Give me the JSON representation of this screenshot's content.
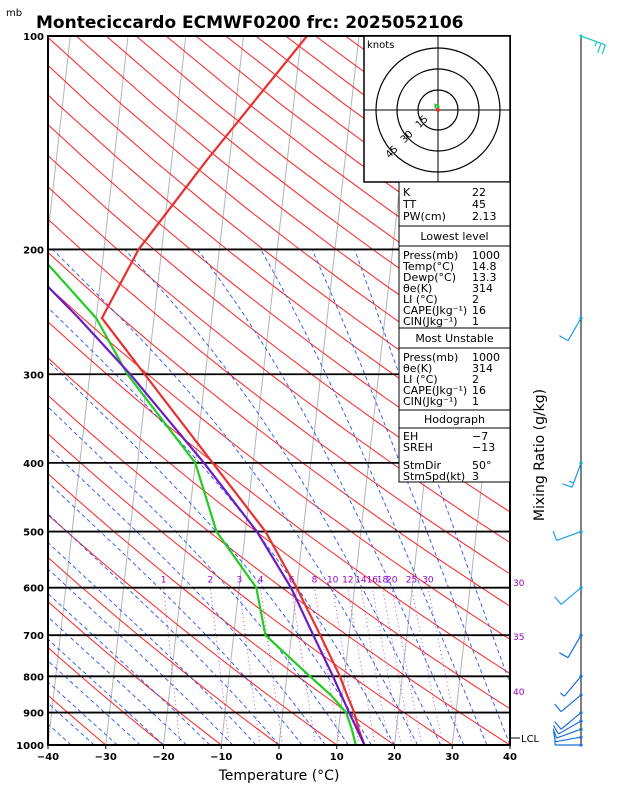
{
  "header": {
    "unit_mb": "mb",
    "title": "Monteciccardo ECMWF0200 frc: 2025052106"
  },
  "chart_data": {
    "type": "line",
    "xlabel": "Temperature (°C)",
    "ylabel": "Mixing Ratio (g/kg)",
    "xlim": [
      -40,
      40
    ],
    "ylim_pressure": [
      1000,
      100
    ],
    "x_ticks": [
      -40,
      -30,
      -20,
      -10,
      0,
      10,
      20,
      30,
      40
    ],
    "p_ticks": [
      1000,
      900,
      800,
      700,
      600,
      500,
      400,
      300,
      200,
      100
    ],
    "mixing_ratio_labels": [
      "1",
      "2",
      "3",
      "4",
      "6",
      "8",
      "10",
      "12",
      "14",
      "16",
      "18",
      "20",
      "25",
      "30"
    ],
    "theta_e_labels": [
      "30",
      "35",
      "40"
    ],
    "lcl_label": "LCL",
    "series": [
      {
        "name": "Temperature",
        "color": "#e83030",
        "points": [
          [
            1000,
            14.8
          ],
          [
            950,
            13.5
          ],
          [
            900,
            12.4
          ],
          [
            850,
            10.8
          ],
          [
            800,
            9.2
          ],
          [
            700,
            5.0
          ],
          [
            600,
            0.0
          ],
          [
            500,
            -6.5
          ],
          [
            400,
            -17.0
          ],
          [
            300,
            -30.5
          ],
          [
            250,
            -39.0
          ],
          [
            200,
            -34.0
          ],
          [
            150,
            -24.0
          ],
          [
            100,
            -9.0
          ]
        ]
      },
      {
        "name": "Dewpoint",
        "color": "#22cc22",
        "points": [
          [
            1000,
            13.3
          ],
          [
            950,
            12.3
          ],
          [
            900,
            11.0
          ],
          [
            850,
            8.0
          ],
          [
            800,
            4.0
          ],
          [
            700,
            -4.5
          ],
          [
            600,
            -7.0
          ],
          [
            500,
            -15.0
          ],
          [
            400,
            -20.0
          ],
          [
            300,
            -33.5
          ],
          [
            250,
            -40.0
          ],
          [
            200,
            -52.0
          ],
          [
            150,
            -65.0
          ],
          [
            100,
            -78.0
          ]
        ]
      },
      {
        "name": "Parcel",
        "color": "#6a1cc8",
        "points": [
          [
            1000,
            14.8
          ],
          [
            900,
            11.5
          ],
          [
            800,
            8.0
          ],
          [
            700,
            3.8
          ],
          [
            600,
            -1.0
          ],
          [
            500,
            -8.0
          ],
          [
            400,
            -18.5
          ],
          [
            300,
            -33.0
          ],
          [
            250,
            -43.0
          ],
          [
            200,
            -56.0
          ],
          [
            150,
            -72.0
          ],
          [
            120,
            -84.0
          ]
        ]
      }
    ],
    "winds": [
      {
        "p": 1000,
        "dir": 270,
        "spd": 5
      },
      {
        "p": 975,
        "dir": 260,
        "spd": 8
      },
      {
        "p": 950,
        "dir": 250,
        "spd": 10
      },
      {
        "p": 925,
        "dir": 240,
        "spd": 10
      },
      {
        "p": 900,
        "dir": 230,
        "spd": 10
      },
      {
        "p": 850,
        "dir": 230,
        "spd": 10
      },
      {
        "p": 800,
        "dir": 220,
        "spd": 5
      },
      {
        "p": 700,
        "dir": 210,
        "spd": 10
      },
      {
        "p": 600,
        "dir": 230,
        "spd": 10
      },
      {
        "p": 500,
        "dir": 250,
        "spd": 10
      },
      {
        "p": 400,
        "dir": 200,
        "spd": 15
      },
      {
        "p": 250,
        "dir": 210,
        "spd": 10
      },
      {
        "p": 100,
        "dir": 110,
        "spd": 25
      }
    ]
  },
  "hodograph": {
    "unit": "knots",
    "ring_labels": [
      "15",
      "30",
      "45"
    ],
    "points": [
      [
        0,
        0
      ],
      [
        -1,
        1
      ],
      [
        -2,
        2
      ],
      [
        -2,
        4
      ],
      [
        0,
        3
      ],
      [
        1,
        2
      ]
    ]
  },
  "indices": {
    "top": [
      {
        "label": "K",
        "value": "22"
      },
      {
        "label": "TT",
        "value": "45"
      },
      {
        "label": "PW(cm)",
        "value": "2.13"
      }
    ],
    "lowest_title": "Lowest level",
    "lowest": [
      {
        "label": "Press(mb)",
        "value": "1000"
      },
      {
        "label": "Temp(°C)",
        "value": "14.8"
      },
      {
        "label": "Dewp(°C)",
        "value": "13.3"
      },
      {
        "label": "θe(K)",
        "value": "314"
      },
      {
        "label": "LI (°C)",
        "value": "2"
      },
      {
        "label": "CAPE(Jkg⁻¹)",
        "value": "16"
      },
      {
        "label": "CIN(Jkg⁻¹)",
        "value": "1"
      }
    ],
    "unstable_title": "Most Unstable",
    "unstable": [
      {
        "label": "Press(mb)",
        "value": "1000"
      },
      {
        "label": "θe(K)",
        "value": "314"
      },
      {
        "label": "LI (°C)",
        "value": "2"
      },
      {
        "label": "CAPE(Jkg⁻¹)",
        "value": "16"
      },
      {
        "label": "CIN(Jkg⁻¹)",
        "value": "1"
      }
    ],
    "hodo_title": "Hodograph",
    "hodo": [
      {
        "label": "EH",
        "value": "−7"
      },
      {
        "label": "SREH",
        "value": "−13"
      },
      {
        "label": "StmDir",
        "value": "50°"
      },
      {
        "label": "StmSpd(kt)",
        "value": "3"
      }
    ]
  }
}
